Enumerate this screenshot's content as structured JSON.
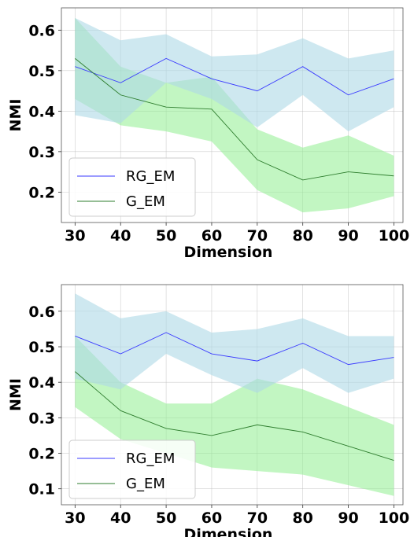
{
  "colors": {
    "rg_line": "#3a3aff",
    "rg_band": "#add8e6",
    "g_line": "#2e7d2e",
    "g_band": "#90ee90"
  },
  "chart_data": [
    {
      "type": "line",
      "title": "",
      "xlabel": "Dimension",
      "ylabel": "NMI",
      "x": [
        30,
        40,
        50,
        60,
        70,
        80,
        90,
        100
      ],
      "xlim": [
        27,
        102
      ],
      "ylim": [
        0.125,
        0.655
      ],
      "yticks": [
        0.2,
        0.3,
        0.4,
        0.5,
        0.6
      ],
      "ytick_labels": [
        "0.2",
        "0.3",
        "0.4",
        "0.5",
        "0.6"
      ],
      "xticks": [
        30,
        40,
        50,
        60,
        70,
        80,
        90,
        100
      ],
      "xtick_labels": [
        "30",
        "40",
        "50",
        "60",
        "70",
        "80",
        "90",
        "100"
      ],
      "grid": true,
      "legend_position": "lower-left",
      "series": [
        {
          "name": "RG_EM",
          "values": [
            0.51,
            0.47,
            0.53,
            0.48,
            0.45,
            0.51,
            0.44,
            0.48
          ],
          "lower": [
            0.39,
            0.37,
            0.47,
            0.43,
            0.36,
            0.44,
            0.35,
            0.41
          ],
          "upper": [
            0.63,
            0.575,
            0.59,
            0.535,
            0.54,
            0.58,
            0.53,
            0.55
          ]
        },
        {
          "name": "G_EM",
          "values": [
            0.53,
            0.44,
            0.41,
            0.405,
            0.28,
            0.23,
            0.25,
            0.24
          ],
          "lower": [
            0.43,
            0.365,
            0.35,
            0.325,
            0.205,
            0.15,
            0.16,
            0.19
          ],
          "upper": [
            0.63,
            0.51,
            0.47,
            0.485,
            0.355,
            0.31,
            0.34,
            0.29
          ]
        }
      ]
    },
    {
      "type": "line",
      "title": "",
      "xlabel": "Dimension",
      "ylabel": "NMI",
      "x": [
        30,
        40,
        50,
        60,
        70,
        80,
        90,
        100
      ],
      "xlim": [
        27,
        102
      ],
      "ylim": [
        0.055,
        0.675
      ],
      "yticks": [
        0.1,
        0.2,
        0.3,
        0.4,
        0.5,
        0.6
      ],
      "ytick_labels": [
        "0.1",
        "0.2",
        "0.3",
        "0.4",
        "0.5",
        "0.6"
      ],
      "xticks": [
        30,
        40,
        50,
        60,
        70,
        80,
        90,
        100
      ],
      "xtick_labels": [
        "30",
        "40",
        "50",
        "60",
        "70",
        "80",
        "90",
        "100"
      ],
      "grid": true,
      "legend_position": "lower-left",
      "series": [
        {
          "name": "RG_EM",
          "values": [
            0.53,
            0.48,
            0.54,
            0.48,
            0.46,
            0.51,
            0.45,
            0.47
          ],
          "lower": [
            0.41,
            0.38,
            0.48,
            0.42,
            0.37,
            0.44,
            0.37,
            0.41
          ],
          "upper": [
            0.65,
            0.58,
            0.6,
            0.54,
            0.55,
            0.58,
            0.53,
            0.53
          ]
        },
        {
          "name": "G_EM",
          "values": [
            0.43,
            0.32,
            0.27,
            0.25,
            0.28,
            0.26,
            0.22,
            0.18
          ],
          "lower": [
            0.33,
            0.24,
            0.2,
            0.16,
            0.15,
            0.14,
            0.11,
            0.08
          ],
          "upper": [
            0.53,
            0.4,
            0.34,
            0.34,
            0.41,
            0.38,
            0.33,
            0.28
          ]
        }
      ]
    }
  ]
}
